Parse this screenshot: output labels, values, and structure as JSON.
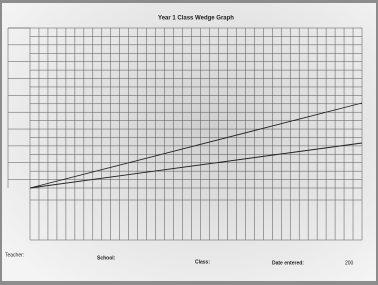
{
  "header": {
    "title": "Year 1 Class Wedge Graph"
  },
  "footer": {
    "teacher": "Teacher:",
    "school": "School:",
    "class": "Class:",
    "date_entered": "Date entered:",
    "year": "200"
  }
}
